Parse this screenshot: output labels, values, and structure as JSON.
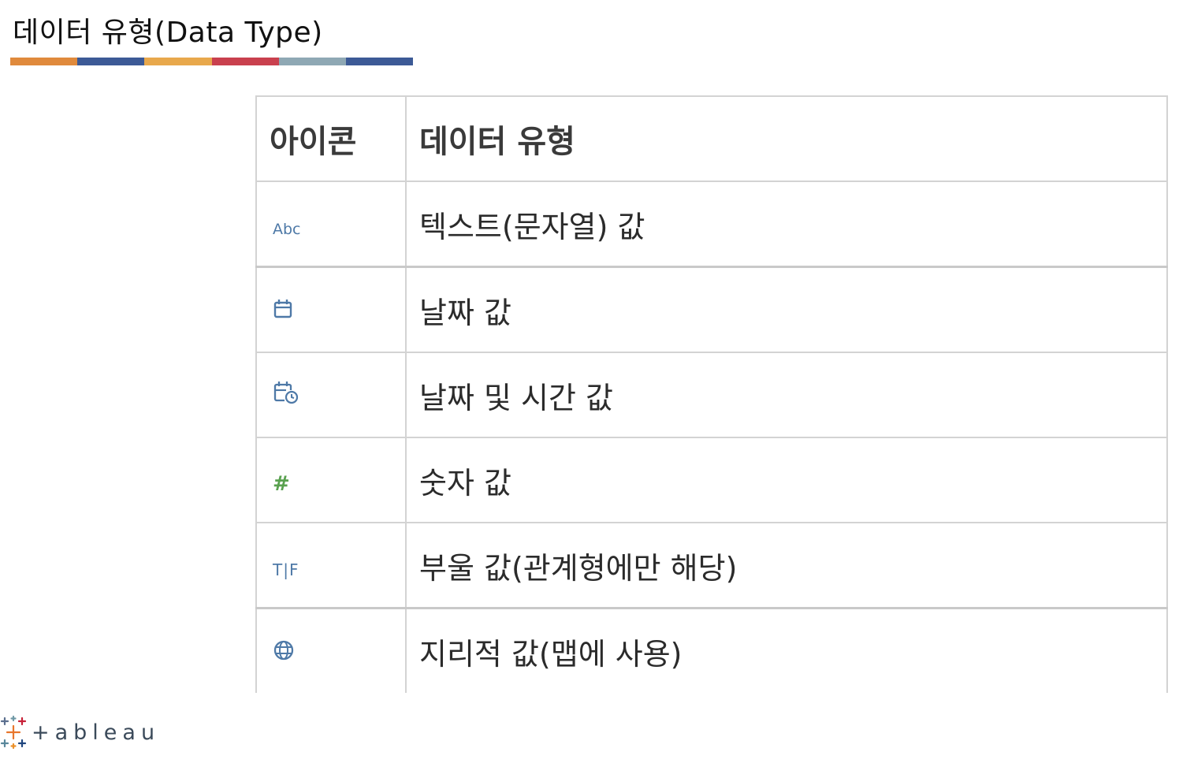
{
  "slide": {
    "title": "데이터 유형(Data Type)",
    "title_bar_colors": [
      "#e08a3c",
      "#3c5a96",
      "#e8a84c",
      "#c9404e",
      "#8fa8b4",
      "#3c5a96"
    ]
  },
  "table": {
    "headers": [
      "아이콘",
      "데이터 유형"
    ],
    "rows": [
      {
        "icon": "abc-text-icon",
        "icon_text": "Abc",
        "label": "텍스트(문자열) 값"
      },
      {
        "icon": "calendar-icon",
        "icon_text": "",
        "label": "날짜 값"
      },
      {
        "icon": "calendar-clock-icon",
        "icon_text": "",
        "label": "날짜 및 시간 값"
      },
      {
        "icon": "hash-icon",
        "icon_text": "#",
        "label": "숫자 값"
      },
      {
        "icon": "true-false-icon",
        "icon_text": "T|F",
        "label": "부울 값(관계형에만 해당)"
      },
      {
        "icon": "globe-icon",
        "icon_text": "",
        "label": "지리적 값(맵에 사용)"
      }
    ]
  },
  "logo": {
    "text": "+ableau",
    "brand_text": "tableau"
  },
  "colors": {
    "icon_blue": "#4e79a7",
    "icon_green": "#59a14f",
    "border": "#d3d3d3"
  }
}
